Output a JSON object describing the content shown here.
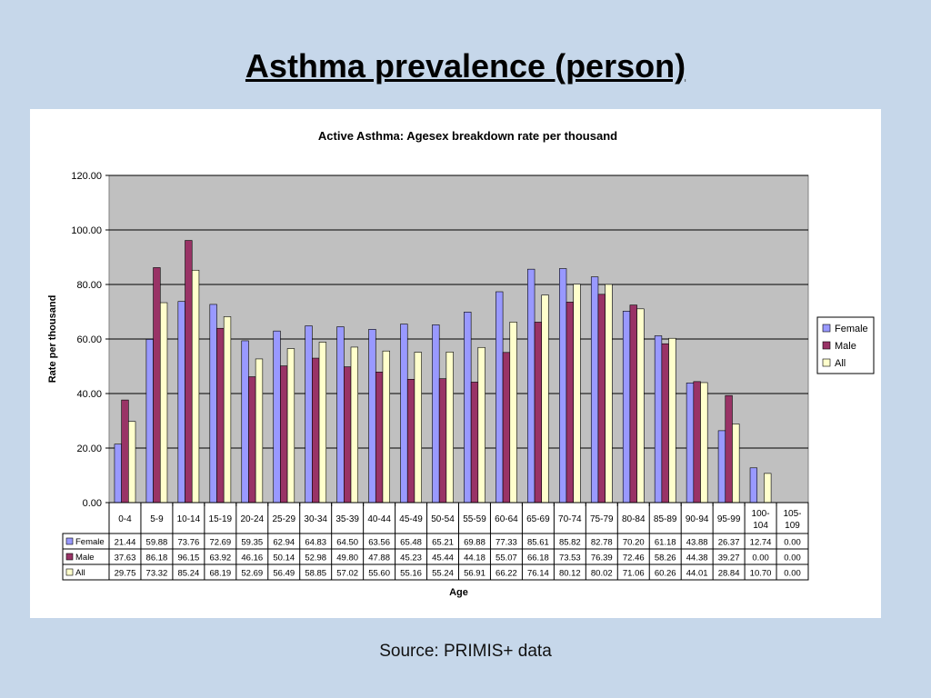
{
  "slide": {
    "title": "Asthma prevalence (person)",
    "source": "Source: PRIMIS+ data"
  },
  "colors": {
    "background": "#c6d7ea",
    "plot_area": "#c0c0c0",
    "female": "#9999ff",
    "male": "#993366",
    "all": "#ffffcc"
  },
  "chart_data": {
    "type": "bar",
    "title": "Active Asthma: Agesex breakdown rate per thousand",
    "xlabel": "Age",
    "ylabel": "Rate per thousand",
    "ylim": [
      0,
      120
    ],
    "yticks": [
      "0.00",
      "20.00",
      "40.00",
      "60.00",
      "80.00",
      "100.00",
      "120.00"
    ],
    "grid": true,
    "legend_position": "right",
    "categories": [
      "0-4",
      "5-9",
      "10-14",
      "15-19",
      "20-24",
      "25-29",
      "30-34",
      "35-39",
      "40-44",
      "45-49",
      "50-54",
      "55-59",
      "60-64",
      "65-69",
      "70-74",
      "75-79",
      "80-84",
      "85-89",
      "90-94",
      "95-99",
      "100-104",
      "105-109"
    ],
    "category_display": [
      [
        "0-4"
      ],
      [
        "5-9"
      ],
      [
        "10-14"
      ],
      [
        "15-19"
      ],
      [
        "20-24"
      ],
      [
        "25-29"
      ],
      [
        "30-34"
      ],
      [
        "35-39"
      ],
      [
        "40-44"
      ],
      [
        "45-49"
      ],
      [
        "50-54"
      ],
      [
        "55-59"
      ],
      [
        "60-64"
      ],
      [
        "65-69"
      ],
      [
        "70-74"
      ],
      [
        "75-79"
      ],
      [
        "80-84"
      ],
      [
        "85-89"
      ],
      [
        "90-94"
      ],
      [
        "95-99"
      ],
      [
        "100-",
        "104"
      ],
      [
        "105-",
        "109"
      ]
    ],
    "series": [
      {
        "name": "Female",
        "color": "#9999ff",
        "values": [
          21.44,
          59.88,
          73.76,
          72.69,
          59.35,
          62.94,
          64.83,
          64.5,
          63.56,
          65.48,
          65.21,
          69.88,
          77.33,
          85.61,
          85.82,
          82.78,
          70.2,
          61.18,
          43.88,
          26.37,
          12.74,
          0.0
        ]
      },
      {
        "name": "Male",
        "color": "#993366",
        "values": [
          37.63,
          86.18,
          96.15,
          63.92,
          46.16,
          50.14,
          52.98,
          49.8,
          47.88,
          45.23,
          45.44,
          44.18,
          55.07,
          66.18,
          73.53,
          76.39,
          72.46,
          58.26,
          44.38,
          39.27,
          0.0,
          0.0
        ]
      },
      {
        "name": "All",
        "color": "#ffffcc",
        "values": [
          29.75,
          73.32,
          85.24,
          68.19,
          52.69,
          56.49,
          58.85,
          57.02,
          55.6,
          55.16,
          55.24,
          56.91,
          66.22,
          76.14,
          80.12,
          80.02,
          71.06,
          60.26,
          44.01,
          28.84,
          10.7,
          0.0
        ]
      }
    ]
  }
}
